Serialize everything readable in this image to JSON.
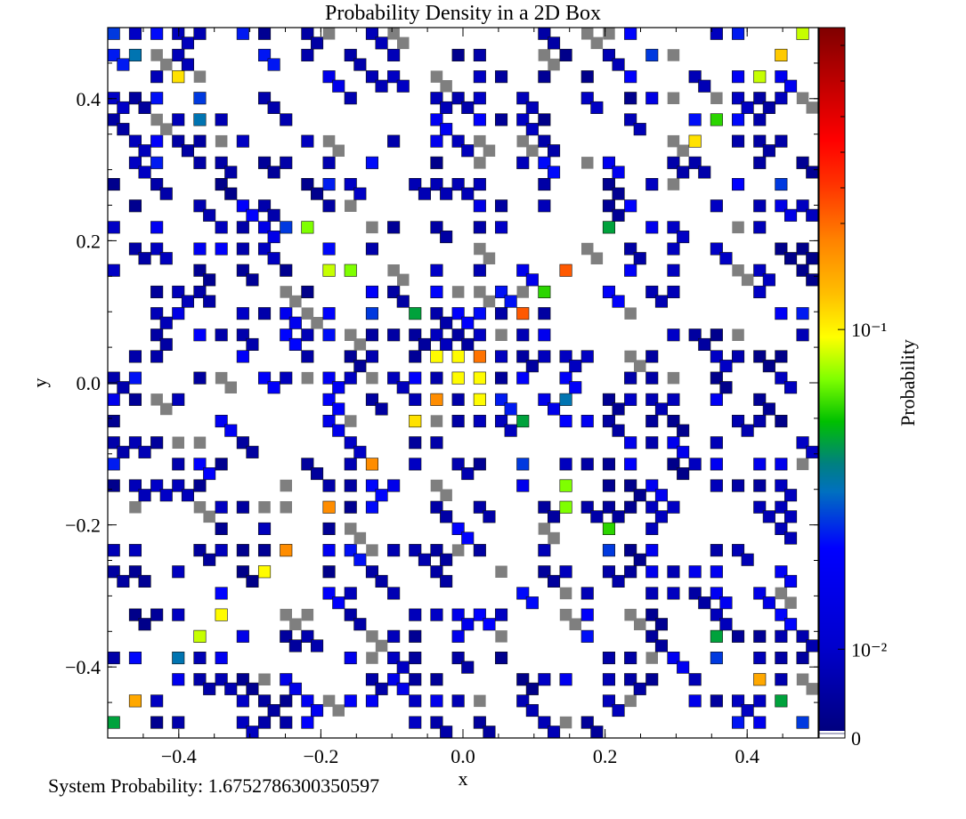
{
  "chart_data": {
    "type": "heatmap",
    "title": "Probability Density in a 2D Box",
    "xlabel": "x",
    "ylabel": "y",
    "xlim": [
      -0.5,
      0.5
    ],
    "ylim": [
      -0.5,
      0.5
    ],
    "x_ticks": [
      -0.4,
      -0.2,
      0.0,
      0.2,
      0.4
    ],
    "x_tick_labels": [
      "−0.4",
      "−0.2",
      "0.0",
      "0.2",
      "0.4"
    ],
    "y_ticks": [
      -0.4,
      -0.2,
      0.0,
      0.2,
      0.4
    ],
    "y_tick_labels": [
      "−0.4",
      "−0.2",
      "0.0",
      "0.2",
      "0.4"
    ],
    "grid": false,
    "grid_resolution": 33,
    "colorbar": {
      "label": "Probability",
      "scale": "log",
      "range": [
        0.003,
        0.3
      ],
      "tick_values": [
        0.01,
        0.1,
        0
      ],
      "tick_labels": [
        "10⁻²",
        "10⁻¹",
        "0"
      ]
    },
    "colors": {
      "zero_cell": "#7f7f7f",
      "low": "#00008b",
      "mid": "#0000ff",
      "high": "#ff0000"
    },
    "highlighted_cells": [
      {
        "x": 0.0,
        "y": 0.03,
        "value": 0.04
      },
      {
        "x": -0.03,
        "y": 0.03,
        "value": 0.04
      },
      {
        "x": 0.03,
        "y": 0.03,
        "value": 0.08
      },
      {
        "x": 0.0,
        "y": 0.0,
        "value": 0.04
      },
      {
        "x": 0.03,
        "y": 0.0,
        "value": 0.04
      },
      {
        "x": -0.03,
        "y": -0.03,
        "value": 0.07
      },
      {
        "x": 0.03,
        "y": -0.03,
        "value": 0.04
      },
      {
        "x": -0.06,
        "y": -0.06,
        "value": 0.045
      },
      {
        "x": -0.12,
        "y": -0.12,
        "value": 0.07
      },
      {
        "x": -0.18,
        "y": -0.18,
        "value": 0.07
      },
      {
        "x": -0.24,
        "y": -0.24,
        "value": 0.07
      },
      {
        "x": -0.27,
        "y": -0.27,
        "value": 0.04
      },
      {
        "x": -0.33,
        "y": -0.33,
        "value": 0.04
      },
      {
        "x": -0.36,
        "y": -0.36,
        "value": 0.035
      },
      {
        "x": -0.39,
        "y": -0.39,
        "value": 0.015
      },
      {
        "x": -0.45,
        "y": -0.45,
        "value": 0.06
      },
      {
        "x": -0.48,
        "y": -0.48,
        "value": 0.02
      },
      {
        "x": -0.39,
        "y": 0.42,
        "value": 0.045
      },
      {
        "x": -0.45,
        "y": 0.45,
        "value": 0.015
      },
      {
        "x": -0.48,
        "y": 0.48,
        "value": 0.012
      },
      {
        "x": -0.36,
        "y": 0.36,
        "value": 0.015
      },
      {
        "x": -0.24,
        "y": 0.21,
        "value": 0.012
      },
      {
        "x": -0.21,
        "y": 0.21,
        "value": 0.03
      },
      {
        "x": -0.18,
        "y": 0.15,
        "value": 0.035
      },
      {
        "x": -0.15,
        "y": 0.15,
        "value": 0.03
      },
      {
        "x": -0.12,
        "y": 0.09,
        "value": 0.012
      },
      {
        "x": -0.06,
        "y": 0.09,
        "value": 0.02
      },
      {
        "x": 0.09,
        "y": 0.09,
        "value": 0.09
      },
      {
        "x": 0.12,
        "y": 0.12,
        "value": 0.025
      },
      {
        "x": 0.15,
        "y": 0.15,
        "value": 0.09
      },
      {
        "x": 0.21,
        "y": 0.21,
        "value": 0.02
      },
      {
        "x": 0.24,
        "y": 0.24,
        "value": 0.01
      },
      {
        "x": 0.27,
        "y": 0.45,
        "value": 0.012
      },
      {
        "x": 0.33,
        "y": 0.33,
        "value": 0.045
      },
      {
        "x": 0.36,
        "y": 0.36,
        "value": 0.025
      },
      {
        "x": 0.42,
        "y": 0.42,
        "value": 0.035
      },
      {
        "x": 0.45,
        "y": 0.45,
        "value": 0.05
      },
      {
        "x": 0.48,
        "y": 0.48,
        "value": 0.035
      },
      {
        "x": 0.45,
        "y": 0.27,
        "value": 0.012
      },
      {
        "x": 0.15,
        "y": -0.15,
        "value": 0.03
      },
      {
        "x": 0.15,
        "y": -0.18,
        "value": 0.03
      },
      {
        "x": 0.21,
        "y": -0.21,
        "value": 0.025
      },
      {
        "x": 0.21,
        "y": -0.24,
        "value": 0.012
      },
      {
        "x": 0.09,
        "y": -0.12,
        "value": 0.012
      },
      {
        "x": 0.09,
        "y": -0.06,
        "value": 0.02
      },
      {
        "x": 0.15,
        "y": -0.03,
        "value": 0.015
      },
      {
        "x": 0.36,
        "y": -0.36,
        "value": 0.02
      },
      {
        "x": 0.36,
        "y": -0.39,
        "value": 0.012
      },
      {
        "x": 0.42,
        "y": -0.42,
        "value": 0.06
      },
      {
        "x": 0.45,
        "y": -0.45,
        "value": 0.02
      },
      {
        "x": 0.48,
        "y": -0.48,
        "value": 0.012
      },
      {
        "x": -0.36,
        "y": 0.39,
        "value": 0.012
      }
    ]
  },
  "footer": {
    "system_probability": "System Probability: 1.6752786300350597"
  }
}
